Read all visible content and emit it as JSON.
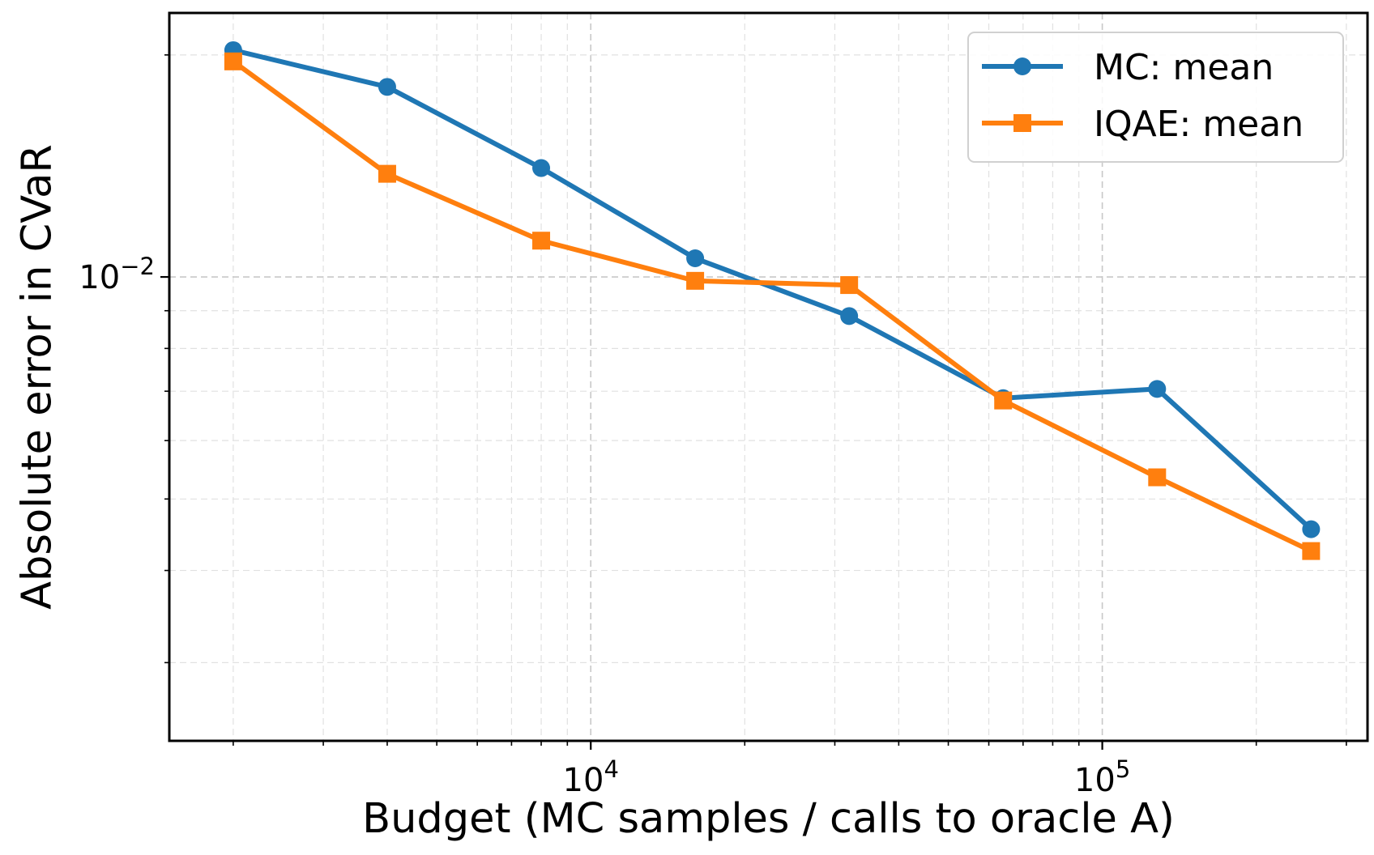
{
  "chart_data": {
    "type": "line",
    "xscale": "log",
    "yscale": "log",
    "xlabel": "Budget (MC samples / calls to oracle A)",
    "ylabel": "Absolute error in CVaR",
    "xlim": [
      1500,
      330000
    ],
    "ylim": [
      0.00235,
      0.0228
    ],
    "x": [
      2000,
      4000,
      8000,
      16000,
      32000,
      64000,
      128000,
      256000
    ],
    "x_ticks": [
      {
        "value": 10000,
        "base": "10",
        "exp": "4"
      },
      {
        "value": 100000,
        "base": "10",
        "exp": "5"
      }
    ],
    "y_ticks": [
      {
        "value": 0.01,
        "base": "10",
        "exp": "−2"
      }
    ],
    "grid": true,
    "legend_position": "top-right",
    "series": [
      {
        "name": "MC: mean",
        "color": "#1f77b4",
        "marker": "circle",
        "values": [
          0.0203,
          0.0181,
          0.01405,
          0.0106,
          0.00885,
          0.00685,
          0.00705,
          0.00455
        ]
      },
      {
        "name": "IQAE: mean",
        "color": "#ff7f0e",
        "marker": "square",
        "values": [
          0.0196,
          0.0138,
          0.0112,
          0.00988,
          0.00975,
          0.0068,
          0.00535,
          0.00425
        ]
      }
    ]
  }
}
